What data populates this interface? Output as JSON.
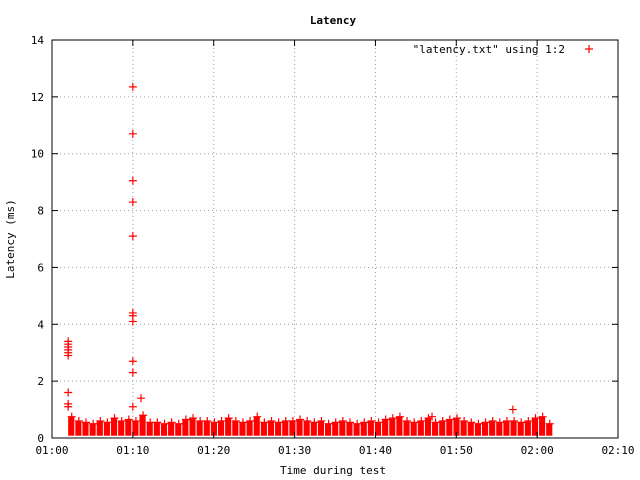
{
  "chart_data": {
    "type": "scatter",
    "title": "Latency",
    "xlabel": "Time during test",
    "ylabel": "Latency (ms)",
    "x_unit": "mm:ss",
    "xlim": [
      "01:00",
      "02:10"
    ],
    "ylim": [
      0,
      14
    ],
    "x_ticks": [
      "01:00",
      "01:10",
      "01:20",
      "01:30",
      "01:40",
      "01:50",
      "02:00",
      "02:10"
    ],
    "y_ticks": [
      "0",
      "2",
      "4",
      "6",
      "8",
      "10",
      "12",
      "14"
    ],
    "grid": true,
    "legend_position": "top-right",
    "marker": "plus",
    "colors": {
      "series": "#ff0000",
      "grid": "#a0a0a0",
      "axis": "#000000"
    },
    "legend": [
      {
        "label": "\"latency.txt\" using 1:2",
        "marker": "plus",
        "color": "#ff0000"
      }
    ],
    "series": [
      {
        "name": "\"latency.txt\" using 1:2",
        "spikes": [
          {
            "x": "01:02",
            "y": [
              3.4,
              3.3,
              3.2,
              3.1,
              3.0,
              2.9,
              1.6,
              1.2,
              1.1
            ]
          },
          {
            "x": "01:10",
            "y": [
              12.35,
              10.7,
              9.05,
              8.3,
              7.1,
              4.4,
              4.3,
              4.1,
              2.7,
              2.3,
              1.1
            ]
          },
          {
            "x": "01:11",
            "y": [
              1.4
            ]
          },
          {
            "x": "01:47",
            "y": [
              0.75
            ]
          },
          {
            "x": "01:57",
            "y": [
              1.0
            ]
          }
        ],
        "baseline": {
          "x_start": "01:02",
          "x_end": "02:02",
          "y_min": 0.08,
          "y_max": [
            0.75,
            0.6,
            0.55,
            0.5,
            0.6,
            0.55,
            0.7,
            0.6,
            0.65,
            0.6,
            0.8,
            0.55,
            0.55,
            0.5,
            0.55,
            0.5,
            0.65,
            0.7,
            0.6,
            0.6,
            0.55,
            0.6,
            0.7,
            0.6,
            0.55,
            0.6,
            0.75,
            0.55,
            0.6,
            0.55,
            0.6,
            0.6,
            0.65,
            0.6,
            0.55,
            0.6,
            0.5,
            0.55,
            0.6,
            0.55,
            0.5,
            0.55,
            0.6,
            0.55,
            0.65,
            0.7,
            0.75,
            0.6,
            0.55,
            0.6,
            0.7,
            0.55,
            0.6,
            0.65,
            0.7,
            0.6,
            0.55,
            0.5,
            0.55,
            0.6,
            0.55,
            0.6,
            0.6,
            0.55,
            0.6,
            0.7,
            0.75,
            0.5
          ]
        }
      }
    ]
  }
}
